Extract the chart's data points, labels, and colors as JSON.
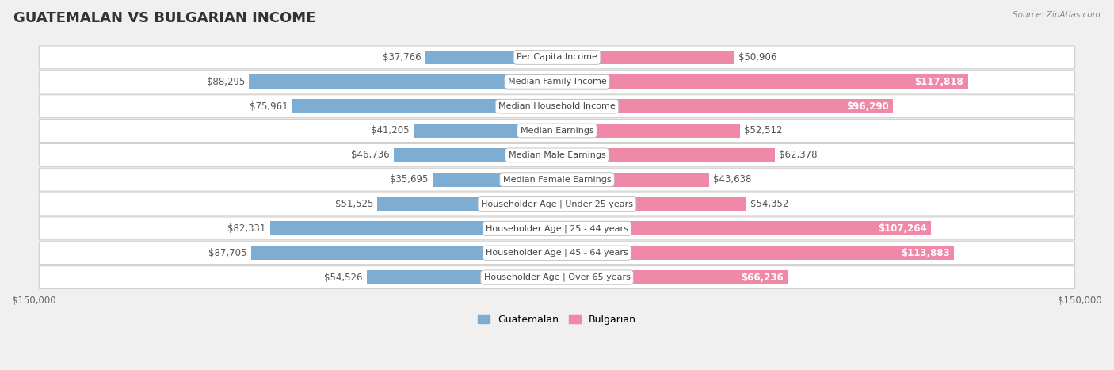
{
  "title": "GUATEMALAN VS BULGARIAN INCOME",
  "source": "Source: ZipAtlas.com",
  "categories": [
    "Per Capita Income",
    "Median Family Income",
    "Median Household Income",
    "Median Earnings",
    "Median Male Earnings",
    "Median Female Earnings",
    "Householder Age | Under 25 years",
    "Householder Age | 25 - 44 years",
    "Householder Age | 45 - 64 years",
    "Householder Age | Over 65 years"
  ],
  "guatemalan_values": [
    37766,
    88295,
    75961,
    41205,
    46736,
    35695,
    51525,
    82331,
    87705,
    54526
  ],
  "bulgarian_values": [
    50906,
    117818,
    96290,
    52512,
    62378,
    43638,
    54352,
    107264,
    113883,
    66236
  ],
  "guatemalan_labels": [
    "$37,766",
    "$88,295",
    "$75,961",
    "$41,205",
    "$46,736",
    "$35,695",
    "$51,525",
    "$82,331",
    "$87,705",
    "$54,526"
  ],
  "bulgarian_labels": [
    "$50,906",
    "$117,818",
    "$96,290",
    "$52,512",
    "$62,378",
    "$43,638",
    "$54,352",
    "$107,264",
    "$113,883",
    "$66,236"
  ],
  "guatemalan_color": "#7eadd4",
  "bulgarian_color": "#f088a8",
  "max_value": 150000,
  "background_color": "#f0f0f0",
  "row_bg_color": "#ffffff",
  "title_fontsize": 13,
  "label_fontsize": 8.5,
  "category_fontsize": 8,
  "axis_label": "$150,000",
  "legend_guatemalan": "Guatemalan",
  "legend_bulgarian": "Bulgarian",
  "bulg_inside_threshold": 65000,
  "guat_inside_threshold": 999999
}
